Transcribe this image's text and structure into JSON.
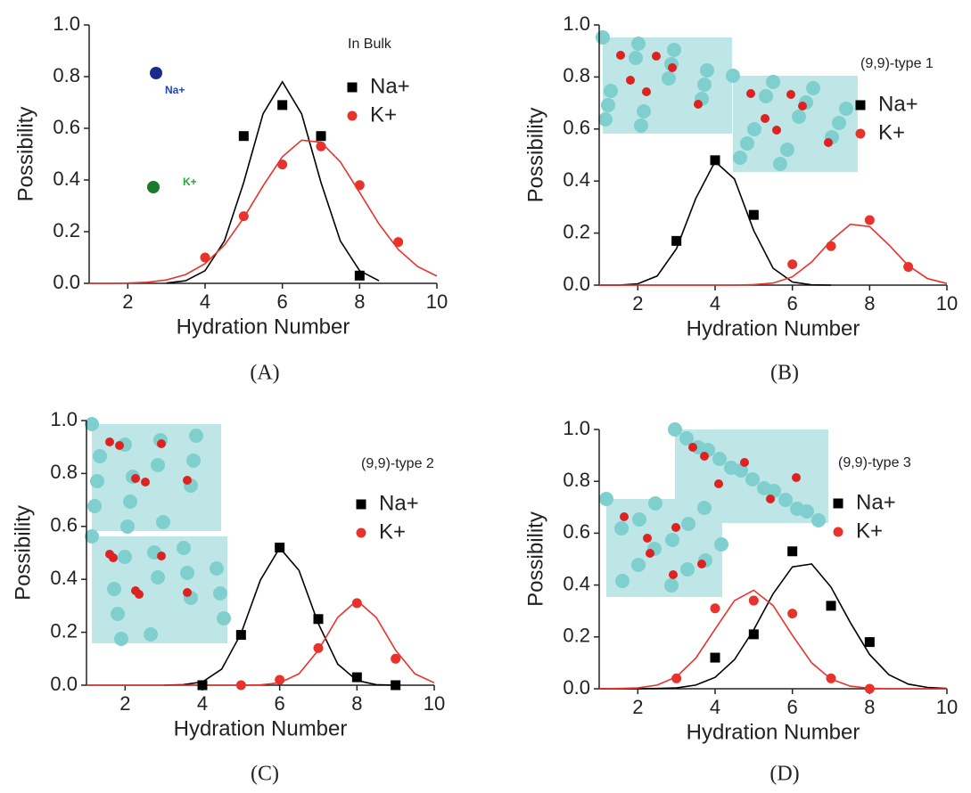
{
  "chart_data": [
    {
      "type": "scatter",
      "panel_label": "(A)",
      "annotation": "In Bulk",
      "inset_labels": [
        "Na+",
        "K+"
      ],
      "xlabel": "Hydration Number",
      "ylabel": "Possibility",
      "xlim": [
        1,
        10
      ],
      "ylim": [
        0,
        1
      ],
      "xticks": [
        2,
        4,
        6,
        8,
        10
      ],
      "yticks": [
        {
          "value": 0,
          "label": "0.0"
        },
        {
          "value": 0.2,
          "label": "0.2"
        },
        {
          "value": 0.4,
          "label": "0.4"
        },
        {
          "value": 0.6,
          "label": "0.6"
        },
        {
          "value": 0.8,
          "label": "0.8"
        },
        {
          "value": 1,
          "label": "1.0"
        }
      ],
      "series": [
        {
          "name": "Na+",
          "color": "#000000",
          "marker": "square",
          "x": [
            5,
            6,
            7,
            8
          ],
          "values": [
            0.57,
            0.69,
            0.57,
            0.03
          ]
        },
        {
          "name": "K+",
          "color": "#e8322c",
          "marker": "circle",
          "x": [
            4,
            5,
            6,
            7,
            8,
            9
          ],
          "values": [
            0.1,
            0.26,
            0.46,
            0.53,
            0.38,
            0.16
          ]
        }
      ],
      "fit_x": [
        1,
        1.5,
        2,
        2.5,
        3,
        3.5,
        4,
        4.5,
        5,
        5.5,
        6,
        6.5,
        7,
        7.5,
        8,
        8.5,
        9,
        9.5,
        10
      ],
      "fits": [
        {
          "color": "#000000",
          "values": [
            null,
            null,
            null,
            null,
            0.001,
            0.01,
            0.049,
            0.164,
            0.39,
            0.656,
            0.78,
            0.656,
            0.39,
            0.164,
            0.049,
            0.01,
            null,
            null,
            null
          ]
        },
        {
          "color": "#e8322c",
          "values": [
            0,
            0,
            0.001,
            0.004,
            0.013,
            0.034,
            0.076,
            0.148,
            0.253,
            0.377,
            0.49,
            0.554,
            0.546,
            0.47,
            0.352,
            0.23,
            0.131,
            0.065,
            0.028
          ]
        }
      ]
    },
    {
      "type": "scatter",
      "panel_label": "(B)",
      "annotation": "(9,9)-type 1",
      "xlabel": "Hydration Number",
      "ylabel": "Possibility",
      "xlim": [
        1,
        10
      ],
      "ylim": [
        0,
        1
      ],
      "xticks": [
        2,
        4,
        6,
        8,
        10
      ],
      "yticks": [
        {
          "value": 0,
          "label": "0.0"
        },
        {
          "value": 0.2,
          "label": "0.2"
        },
        {
          "value": 0.4,
          "label": "0.4"
        },
        {
          "value": 0.6,
          "label": "0.6"
        },
        {
          "value": 0.8,
          "label": "0.8"
        },
        {
          "value": 1,
          "label": "1.0"
        }
      ],
      "series": [
        {
          "name": "Na+",
          "color": "#000000",
          "marker": "square",
          "x": [
            3,
            4,
            5
          ],
          "values": [
            0.17,
            0.48,
            0.27
          ]
        },
        {
          "name": "K+",
          "color": "#e8322c",
          "marker": "circle",
          "x": [
            6,
            7,
            8,
            9
          ],
          "values": [
            0.08,
            0.15,
            0.25,
            0.07
          ]
        }
      ],
      "fit_x": [
        1,
        1.5,
        2,
        2.5,
        3,
        3.5,
        4,
        4.5,
        5,
        5.5,
        6,
        6.5,
        7,
        7.5,
        8,
        8.5,
        9,
        9.5,
        10
      ],
      "fits": [
        {
          "color": "#000000",
          "values": [
            0,
            0,
            0.005,
            0.035,
            0.14,
            0.333,
            0.475,
            0.408,
            0.21,
            0.065,
            0.012,
            0.001,
            0,
            null,
            null,
            null,
            null,
            null,
            null
          ]
        },
        {
          "color": "#e8322c",
          "values": [
            0,
            0,
            0,
            0,
            0,
            0,
            0,
            0,
            0.002,
            0.008,
            0.032,
            0.089,
            0.171,
            0.234,
            0.225,
            0.154,
            0.075,
            0.025,
            0.006
          ]
        }
      ]
    },
    {
      "type": "scatter",
      "panel_label": "(C)",
      "annotation": "(9,9)-type 2",
      "xlabel": "Hydration Number",
      "ylabel": "Possibility",
      "xlim": [
        1,
        10
      ],
      "ylim": [
        0,
        1
      ],
      "xticks": [
        2,
        4,
        6,
        8,
        10
      ],
      "yticks": [
        {
          "value": 0,
          "label": "0.0"
        },
        {
          "value": 0.2,
          "label": "0.2"
        },
        {
          "value": 0.4,
          "label": "0.4"
        },
        {
          "value": 0.6,
          "label": "0.6"
        },
        {
          "value": 0.8,
          "label": "0.8"
        },
        {
          "value": 1,
          "label": "1.0"
        }
      ],
      "series": [
        {
          "name": "Na+",
          "color": "#000000",
          "marker": "square",
          "x": [
            4,
            5,
            6,
            7,
            8,
            9
          ],
          "values": [
            0,
            0.19,
            0.52,
            0.25,
            0.03,
            0
          ]
        },
        {
          "name": "K+",
          "color": "#e8322c",
          "marker": "circle",
          "x": [
            5,
            6,
            7,
            8,
            9
          ],
          "values": [
            0,
            0.02,
            0.14,
            0.31,
            0.1
          ]
        }
      ],
      "fit_x": [
        1,
        1.5,
        2,
        2.5,
        3,
        3.5,
        4,
        4.5,
        5,
        5.5,
        6,
        6.5,
        7,
        7.5,
        8,
        8.5,
        9,
        9.5,
        10
      ],
      "fits": [
        {
          "color": "#000000",
          "values": [
            null,
            null,
            null,
            null,
            0,
            0.002,
            0.012,
            0.061,
            0.195,
            0.397,
            0.519,
            0.434,
            0.233,
            0.08,
            0.018,
            0.002,
            0,
            null,
            null
          ]
        },
        {
          "color": "#e8322c",
          "values": [
            0,
            0,
            0,
            0,
            0,
            0,
            0,
            0,
            0,
            0.001,
            0.009,
            0.043,
            0.132,
            0.256,
            0.32,
            0.256,
            0.132,
            0.043,
            0.009
          ]
        }
      ]
    },
    {
      "type": "scatter",
      "panel_label": "(D)",
      "annotation": "(9,9)-type 3",
      "xlabel": "Hydration Number",
      "ylabel": "Possibility",
      "xlim": [
        1,
        10
      ],
      "ylim": [
        0,
        1
      ],
      "xticks": [
        2,
        4,
        6,
        8,
        10
      ],
      "yticks": [
        {
          "value": 0,
          "label": "0.0"
        },
        {
          "value": 0.2,
          "label": "0.2"
        },
        {
          "value": 0.4,
          "label": "0.4"
        },
        {
          "value": 0.6,
          "label": "0.6"
        },
        {
          "value": 0.8,
          "label": "0.8"
        },
        {
          "value": 1,
          "label": "1.0"
        }
      ],
      "series": [
        {
          "name": "Na+",
          "color": "#000000",
          "marker": "square",
          "x": [
            4,
            5,
            6,
            7,
            8
          ],
          "values": [
            0.12,
            0.21,
            0.53,
            0.32,
            0.18
          ]
        },
        {
          "name": "K+",
          "color": "#e8322c",
          "marker": "circle",
          "x": [
            3,
            4,
            5,
            6,
            7,
            8
          ],
          "values": [
            0.04,
            0.31,
            0.34,
            0.29,
            0.04,
            0
          ]
        }
      ],
      "fit_x": [
        1,
        1.5,
        2,
        2.5,
        3,
        3.5,
        4,
        4.5,
        5,
        5.5,
        6,
        6.5,
        7,
        7.5,
        8,
        8.5,
        9,
        9.5,
        10
      ],
      "fits": [
        {
          "color": "#000000",
          "values": [
            0,
            0,
            0,
            0.001,
            0.003,
            0.014,
            0.044,
            0.112,
            0.227,
            0.366,
            0.47,
            0.481,
            0.392,
            0.255,
            0.132,
            0.054,
            0.018,
            0.005,
            0.001
          ]
        },
        {
          "color": "#e8322c",
          "values": [
            0,
            0.001,
            0.003,
            0.014,
            0.046,
            0.118,
            0.23,
            0.34,
            0.38,
            0.321,
            0.206,
            0.1,
            0.037,
            0.01,
            0.002,
            0,
            0,
            0,
            0
          ]
        }
      ]
    }
  ]
}
